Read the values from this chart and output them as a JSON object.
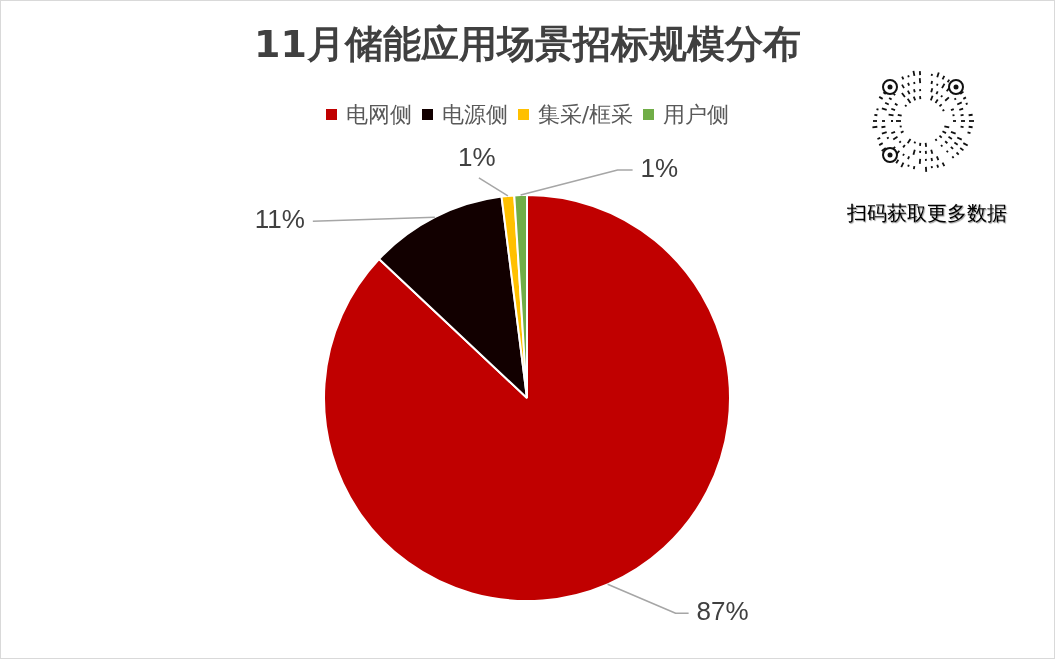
{
  "chart_data": {
    "type": "pie",
    "title": "11月储能应用场景招标规模分布",
    "categories": [
      "电网侧",
      "电源侧",
      "集采/框采",
      "用户侧"
    ],
    "values": [
      87,
      11,
      1,
      1
    ],
    "colors": [
      "#c00000",
      "#120000",
      "#ffc000",
      "#70ad47"
    ],
    "value_labels": [
      "87%",
      "11%",
      "1%",
      "1%"
    ],
    "legend": "top",
    "annotations": [
      "扫码获取更多数据"
    ]
  }
}
